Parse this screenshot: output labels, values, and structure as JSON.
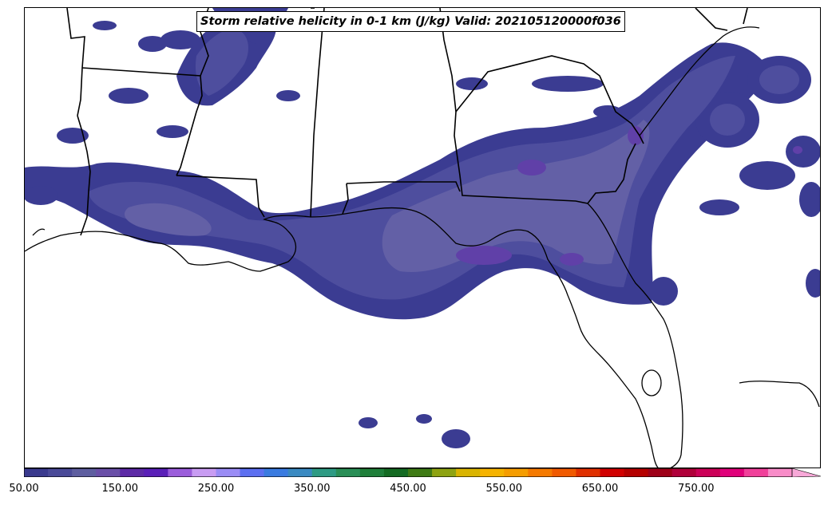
{
  "title": "Storm relative helicity in 0-1 km (J/kg) Valid: 202105120000f036",
  "colorbar": {
    "colors": [
      "#3a3a8e",
      "#4a4a98",
      "#5e5ea0",
      "#6a4fa8",
      "#5d2aa6",
      "#5a1fb8",
      "#9b5ddb",
      "#c89cf2",
      "#9a8cf5",
      "#5c6ff0",
      "#3a7be0",
      "#3a8ac2",
      "#2e9b84",
      "#2a8f57",
      "#1f7f3a",
      "#146b23",
      "#3f7b15",
      "#8ea312",
      "#d9b400",
      "#f5b300",
      "#f59d00",
      "#f57a00",
      "#f05a00",
      "#e03000",
      "#d10000",
      "#b50000",
      "#9e0018",
      "#b0003a",
      "#cc0058",
      "#e0007a",
      "#f0409a",
      "#f88cc8"
    ],
    "ticks": [
      "50.00",
      "150.00",
      "250.00",
      "350.00",
      "450.00",
      "550.00",
      "650.00",
      "750.00"
    ],
    "extend_color": "#f8a8d8"
  },
  "field_colors": {
    "level1": "#3b3c92",
    "level2": "#4e4e9e",
    "level3": "#6360a6",
    "level4": "#6040a8"
  }
}
